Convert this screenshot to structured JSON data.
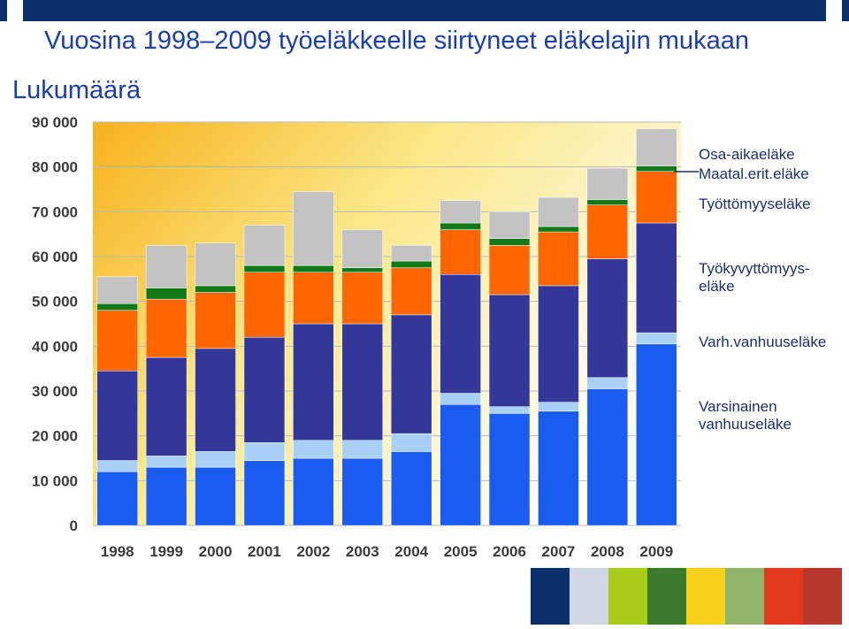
{
  "slide": {
    "title": "Vuosina 1998–2009 työeläkkeelle siirtyneet eläkelajin mukaan",
    "y_label": "Lukumäärä"
  },
  "chart_data": {
    "type": "bar",
    "stacked": true,
    "categories": [
      "1998",
      "1999",
      "2000",
      "2001",
      "2002",
      "2003",
      "2004",
      "2005",
      "2006",
      "2007",
      "2008",
      "2009"
    ],
    "ylim": [
      0,
      90000
    ],
    "yticks": [
      "0",
      "10 000",
      "20 000",
      "30 000",
      "40 000",
      "50 000",
      "60 000",
      "70 000",
      "80 000",
      "90 000"
    ],
    "series": [
      {
        "name": "Varsinainen vanhuuseläke",
        "color": "#1a5cf0",
        "values": [
          12000,
          13000,
          13000,
          14500,
          15000,
          15000,
          16500,
          27000,
          25000,
          25500,
          30500,
          40500
        ]
      },
      {
        "name": "Varh.vanhuuseläke",
        "color": "#a9d0f5",
        "values": [
          2500,
          2500,
          3500,
          4000,
          4000,
          4000,
          4000,
          2500,
          1500,
          2000,
          2500,
          2500
        ]
      },
      {
        "name": "Työkyvyttömyys-eläke",
        "color": "#33379a",
        "values": [
          20000,
          22000,
          23000,
          23500,
          26000,
          26000,
          26500,
          26500,
          25000,
          26000,
          26500,
          24500
        ]
      },
      {
        "name": "Työttömyyseläke",
        "color": "#ff6600",
        "values": [
          13500,
          13000,
          12500,
          14500,
          11500,
          11500,
          10500,
          10000,
          11000,
          12000,
          12000,
          11500
        ]
      },
      {
        "name": "Maatal.erit.eläke",
        "color": "#117a17",
        "values": [
          1500,
          2500,
          1500,
          1500,
          1500,
          1000,
          1500,
          1500,
          1500,
          1200,
          1200,
          1200
        ]
      },
      {
        "name": "Osa-aikaeläke",
        "color": "#c3c3c3",
        "values": [
          6000,
          9500,
          9500,
          9000,
          16500,
          8500,
          3500,
          5000,
          6000,
          6500,
          7000,
          8300
        ]
      }
    ],
    "legend_position": "right",
    "grid": true
  }
}
